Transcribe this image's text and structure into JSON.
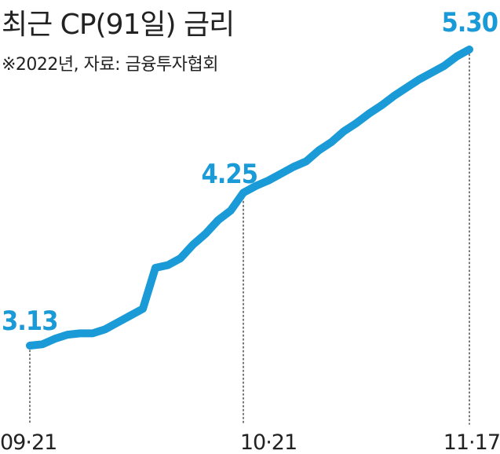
{
  "chart_data": {
    "type": "line",
    "title": "최근 CP(91일) 금리",
    "subtitle": "※2022년, 자료: 금융투자협회",
    "x_tick_labels": [
      "09·21",
      "10·21",
      "11·17"
    ],
    "series": [
      {
        "values": [
          3.13,
          3.14,
          3.18,
          3.21,
          3.22,
          3.22,
          3.25,
          3.3,
          3.35,
          3.4,
          3.7,
          3.72,
          3.77,
          3.87,
          3.95,
          4.05,
          4.12,
          4.25,
          4.3,
          4.34,
          4.39,
          4.44,
          4.48,
          4.56,
          4.62,
          4.7,
          4.76,
          4.83,
          4.89,
          4.96,
          5.02,
          5.08,
          5.13,
          5.18,
          5.25,
          5.3
        ]
      }
    ],
    "annotations": [
      {
        "index": 0,
        "label": "3.13"
      },
      {
        "index": 17,
        "label": "4.25"
      },
      {
        "index": 35,
        "label": "5.30"
      }
    ],
    "line_color": "#1a9ad6",
    "label_color": "#1a9ad6",
    "guide_color": "#555555",
    "text_color": "#222222"
  }
}
